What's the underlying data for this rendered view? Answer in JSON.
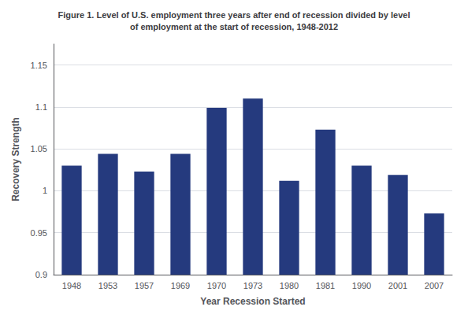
{
  "chart_data": {
    "type": "bar",
    "title": "Figure 1. Level of U.S. employment three years after end of recession divided by level\nof employment at the start of recession, 1948-2012",
    "xlabel": "Year Recession Started",
    "ylabel": "Recovery Strength",
    "categories": [
      "1948",
      "1953",
      "1957",
      "1969",
      "1970",
      "1973",
      "1980",
      "1981",
      "1990",
      "2001",
      "2007"
    ],
    "values": [
      1.03,
      1.044,
      1.023,
      1.044,
      1.099,
      1.11,
      1.012,
      1.073,
      1.03,
      1.019,
      0.973
    ],
    "color": "#253A7E",
    "ylim": [
      0.9,
      1.175
    ],
    "yticks": [
      0.9,
      0.95,
      1,
      1.05,
      1.1,
      1.15
    ],
    "grid": true
  }
}
